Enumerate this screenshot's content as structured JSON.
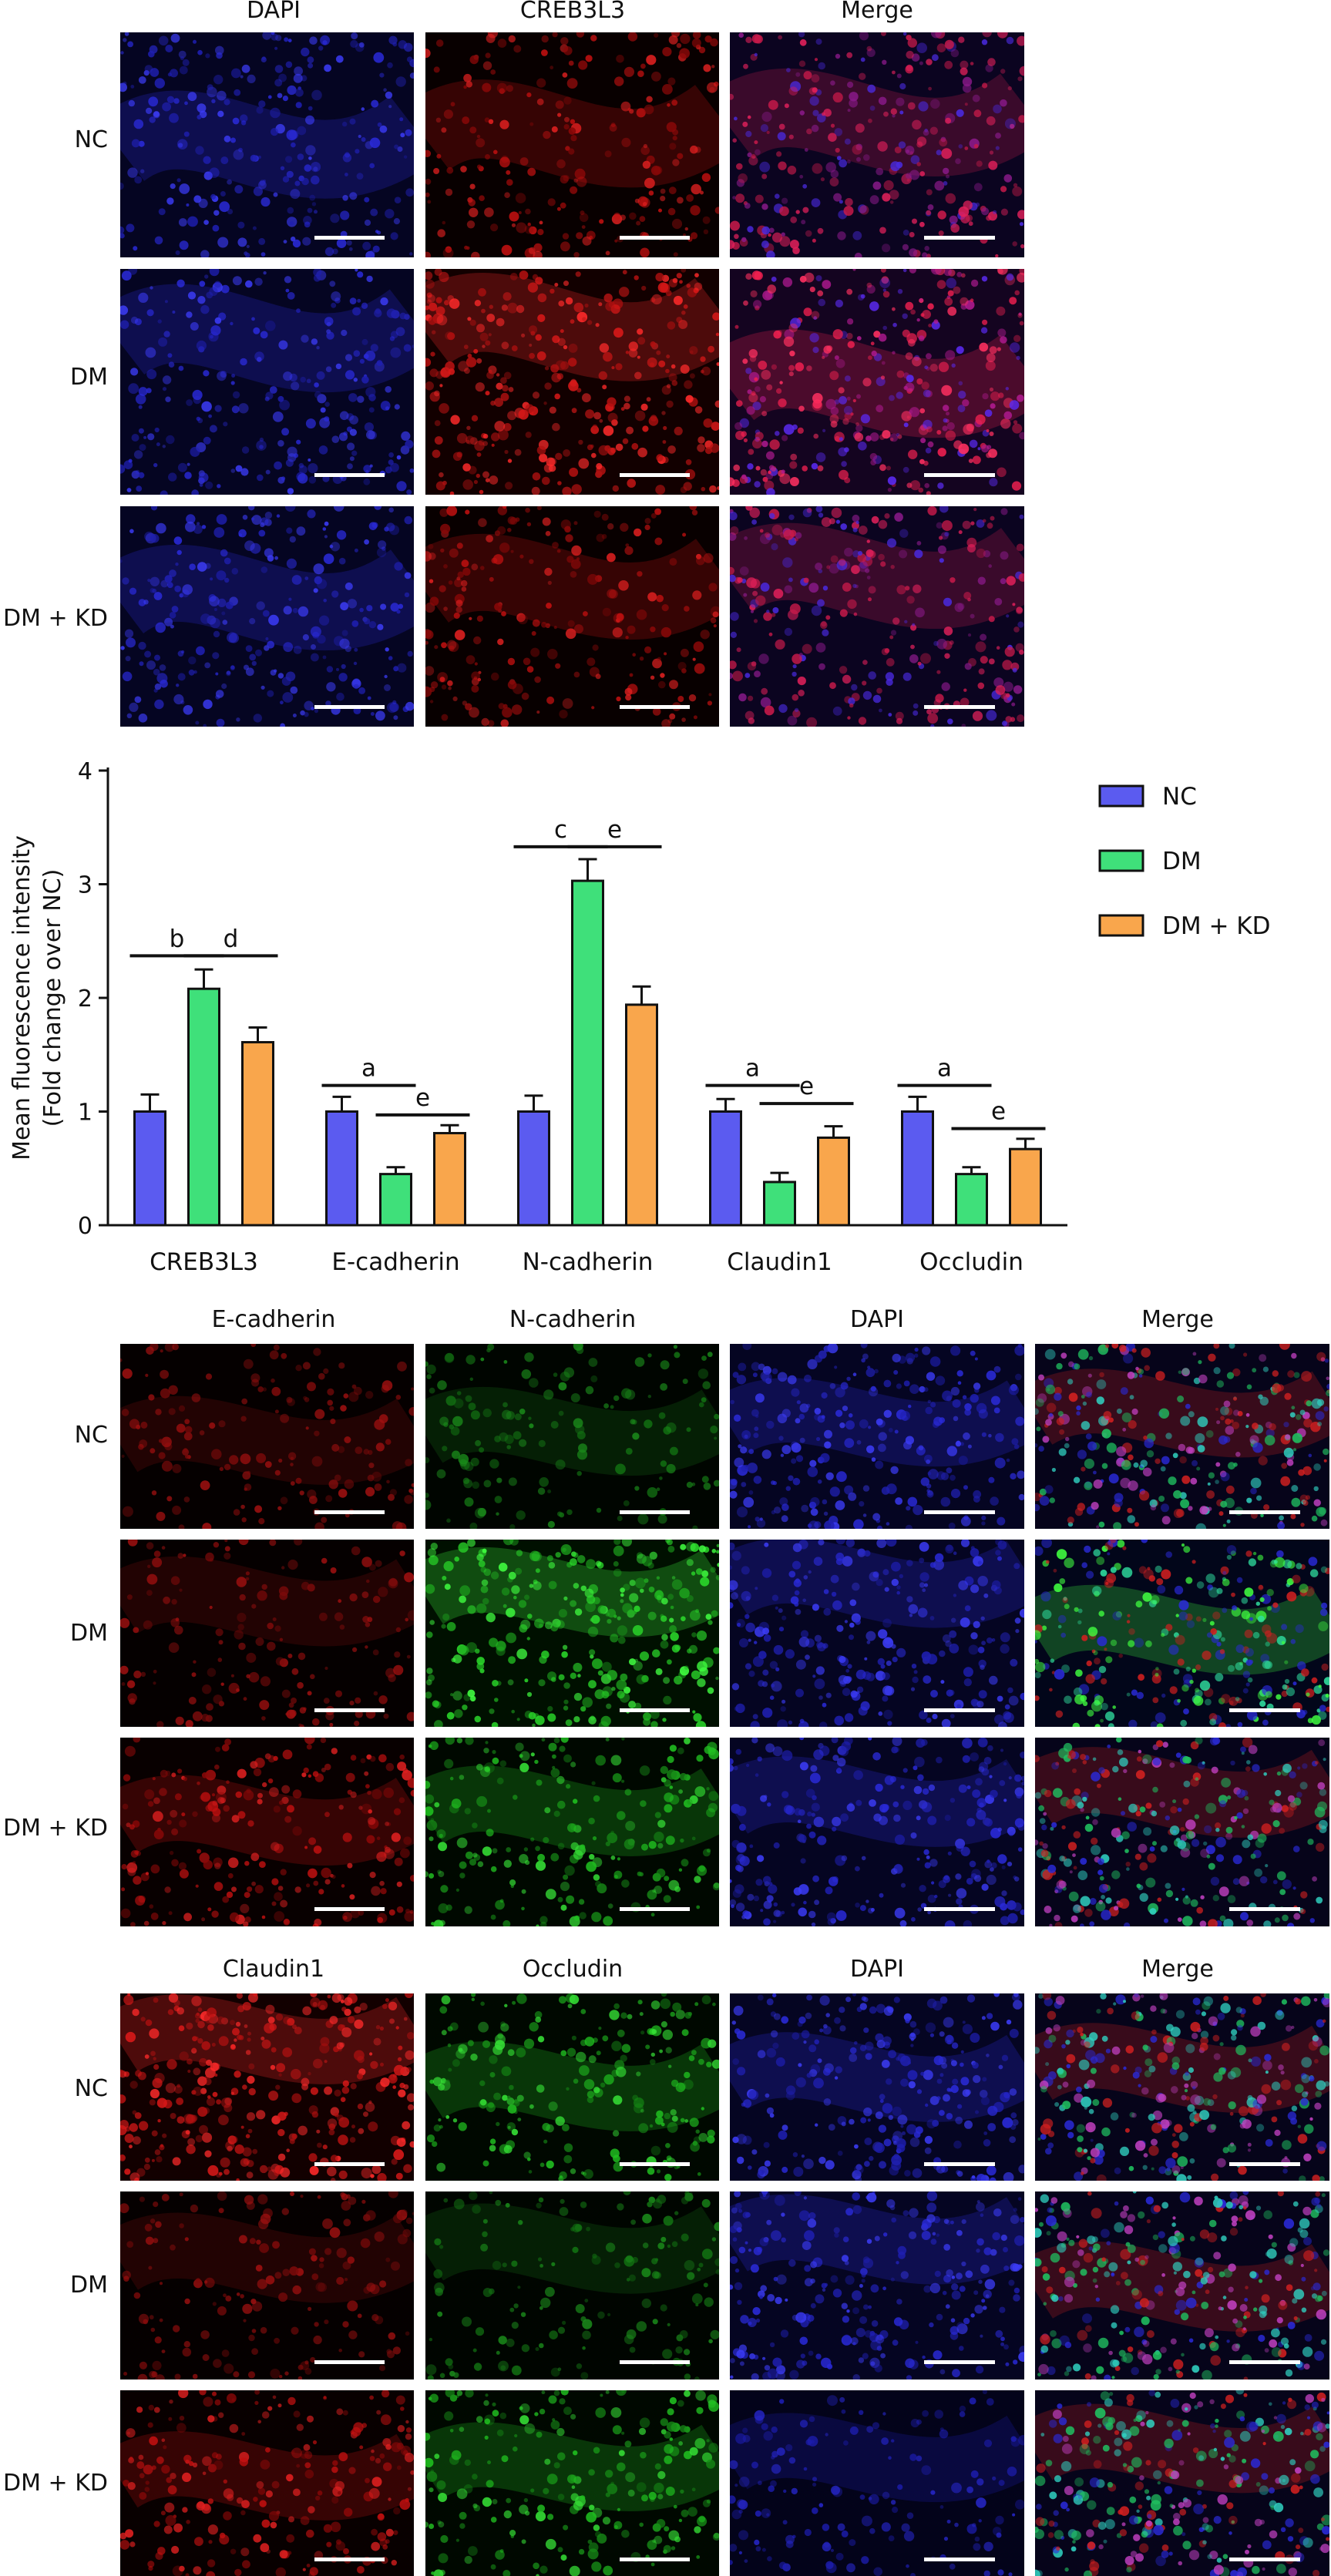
{
  "figure1": {
    "col_labels": [
      "DAPI",
      "CREB3L3",
      "Merge"
    ],
    "row_labels": [
      "NC",
      "DM",
      "DM + KD"
    ],
    "channels": [
      "blue",
      "red",
      "merge-rb"
    ]
  },
  "figure2": {
    "col_labels": [
      "E-cadherin",
      "N-cadherin",
      "DAPI",
      "Merge"
    ],
    "row_labels": [
      "NC",
      "DM",
      "DM + KD"
    ],
    "channels": [
      "red",
      "green",
      "blue",
      "merge-rgb"
    ]
  },
  "figure3": {
    "col_labels": [
      "Claudin1",
      "Occludin",
      "DAPI",
      "Merge"
    ],
    "row_labels": [
      "NC",
      "DM",
      "DM + KD"
    ],
    "channels": [
      "red",
      "green",
      "blue",
      "merge-rgb"
    ]
  },
  "chart_data": {
    "type": "bar",
    "ylabel": "Mean fluorescence intensity",
    "ylabel2": "(Fold change over NC)",
    "ylim": [
      0,
      4
    ],
    "yticks": [
      "0",
      "1",
      "2",
      "3",
      "4"
    ],
    "categories": [
      "CREB3L3",
      "E-cadherin",
      "N-cadherin",
      "Claudin1",
      "Occludin"
    ],
    "series": [
      {
        "name": "NC",
        "color": "#5b5bf0",
        "values": [
          1.0,
          1.0,
          1.0,
          1.0,
          1.0
        ],
        "errors": [
          0.15,
          0.13,
          0.14,
          0.11,
          0.13
        ]
      },
      {
        "name": "DM",
        "color": "#3fe07a",
        "values": [
          2.08,
          0.45,
          3.03,
          0.38,
          0.45
        ],
        "errors": [
          0.17,
          0.06,
          0.19,
          0.08,
          0.06
        ]
      },
      {
        "name": "DM + KD",
        "color": "#f9a64c",
        "values": [
          1.61,
          0.81,
          1.94,
          0.77,
          0.67
        ],
        "errors": [
          0.13,
          0.07,
          0.16,
          0.1,
          0.09
        ]
      }
    ],
    "annotations": [
      {
        "cat": 0,
        "text": "b",
        "from": 0,
        "to": 1,
        "y": 2.37
      },
      {
        "cat": 0,
        "text": "d",
        "from": 1,
        "to": 2,
        "y": 2.37
      },
      {
        "cat": 1,
        "text": "a",
        "from": 0,
        "to": 1,
        "y": 1.23
      },
      {
        "cat": 1,
        "text": "e",
        "from": 1,
        "to": 2,
        "y": 0.97
      },
      {
        "cat": 2,
        "text": "c",
        "from": 0,
        "to": 1,
        "y": 3.33
      },
      {
        "cat": 2,
        "text": "e",
        "from": 1,
        "to": 2,
        "y": 3.33
      },
      {
        "cat": 3,
        "text": "a",
        "from": 0,
        "to": 1,
        "y": 1.23
      },
      {
        "cat": 3,
        "text": "e",
        "from": 1,
        "to": 2,
        "y": 1.07
      },
      {
        "cat": 4,
        "text": "a",
        "from": 0,
        "to": 1,
        "y": 1.23
      },
      {
        "cat": 4,
        "text": "e",
        "from": 1,
        "to": 2,
        "y": 0.85
      }
    ],
    "legend_position": "top-right"
  }
}
